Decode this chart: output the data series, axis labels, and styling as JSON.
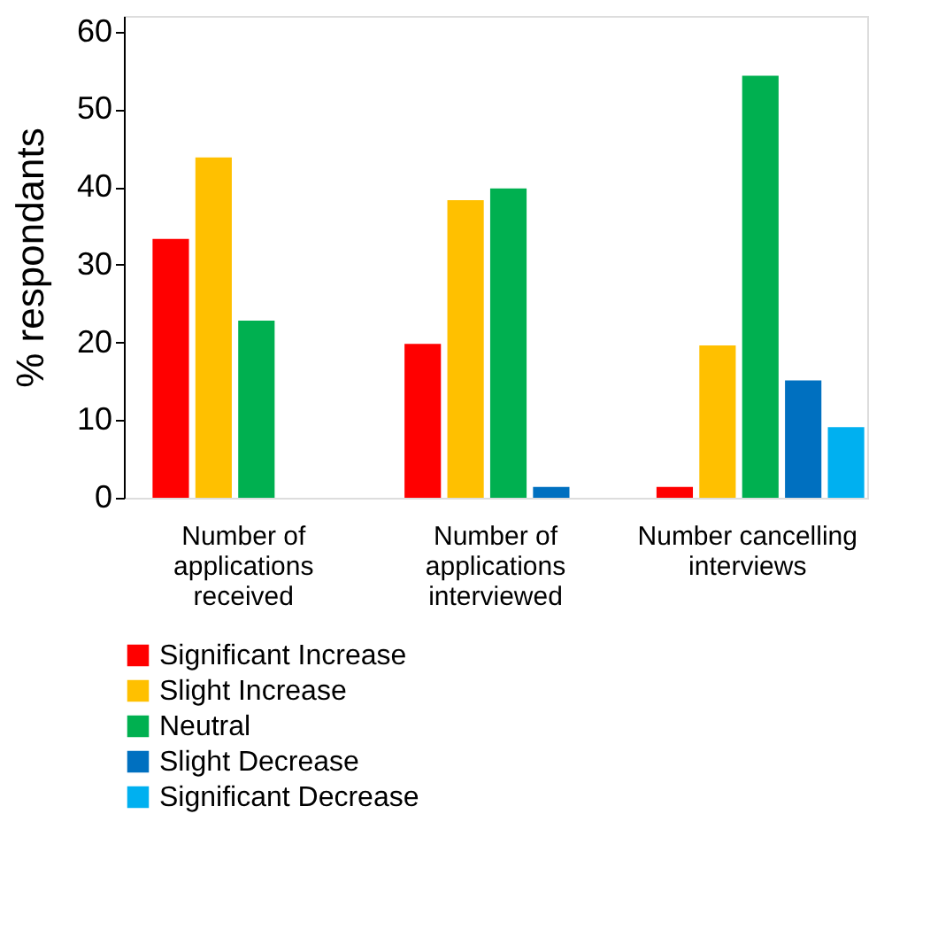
{
  "chart_data": {
    "type": "bar",
    "ylabel": "% respondants",
    "categories": [
      "Number of applications received",
      "Number of applications interviewed",
      "Number cancelling interviews"
    ],
    "series": [
      {
        "name": "Significant Increase",
        "color": "#ff0000",
        "values": [
          33.3,
          19.8,
          1.4
        ]
      },
      {
        "name": "Slight Increase",
        "color": "#ffc000",
        "values": [
          43.8,
          38.3,
          19.6
        ]
      },
      {
        "name": "Neutral",
        "color": "#00b050",
        "values": [
          22.8,
          39.8,
          54.3
        ]
      },
      {
        "name": "Slight Decrease",
        "color": "#0070c0",
        "values": [
          null,
          1.4,
          15.1
        ]
      },
      {
        "name": "Significant Decrease",
        "color": "#00b0f0",
        "values": [
          null,
          null,
          9.1
        ]
      }
    ],
    "ylim": [
      0,
      62
    ],
    "yticks": [
      0,
      10,
      20,
      30,
      40,
      50,
      60
    ],
    "grid": false,
    "legend": "bottom"
  }
}
